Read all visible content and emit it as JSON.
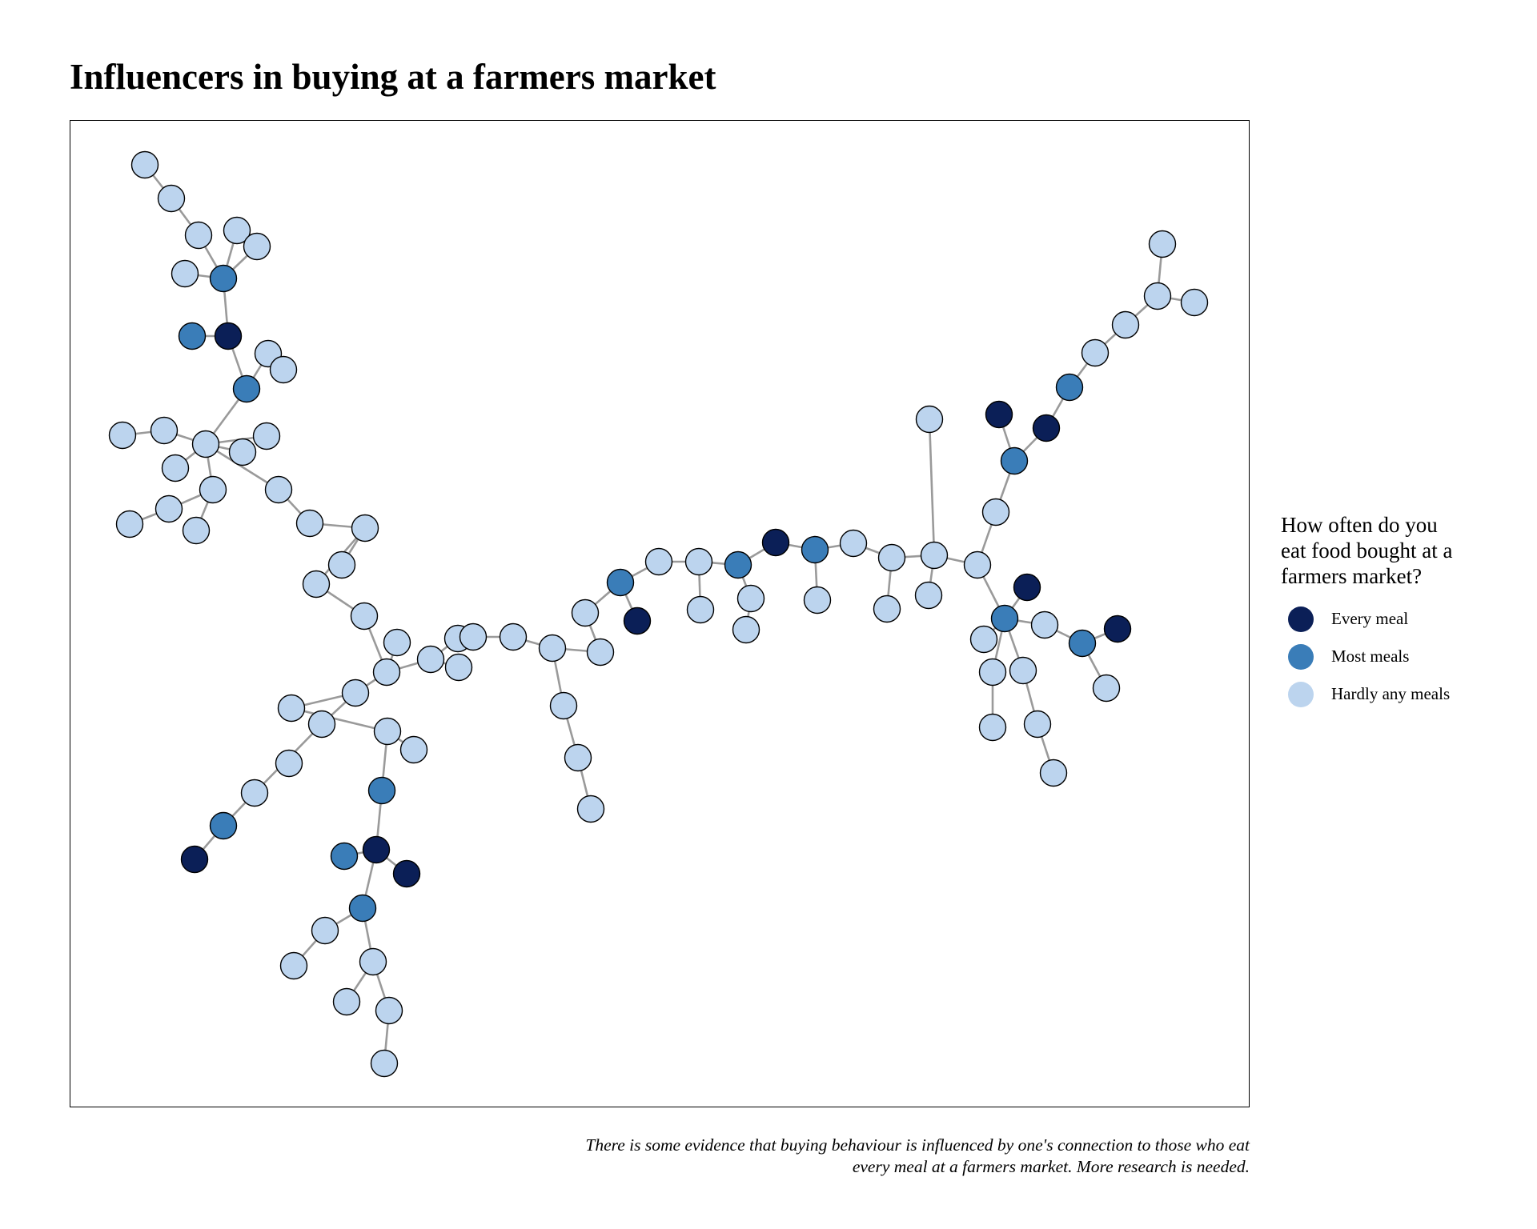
{
  "title": "Influencers in buying at a farmers market",
  "legend": {
    "title_lines": [
      "How often do you",
      "eat food bought at a",
      "farmers market?"
    ],
    "items": [
      {
        "key": "every",
        "label": "Every meal",
        "color": "#0b1f57"
      },
      {
        "key": "most",
        "label": "Most meals",
        "color": "#3a7db8"
      },
      {
        "key": "hardly",
        "label": "Hardly any meals",
        "color": "#bcd4ee"
      }
    ]
  },
  "caption_lines": [
    "There is some evidence that buying behaviour is influenced by one's connection to those who eat",
    "every meal at a farmers market. More research is needed."
  ],
  "colors": {
    "edge": "#9a9a9a",
    "node_outline": "#000000"
  }
}
